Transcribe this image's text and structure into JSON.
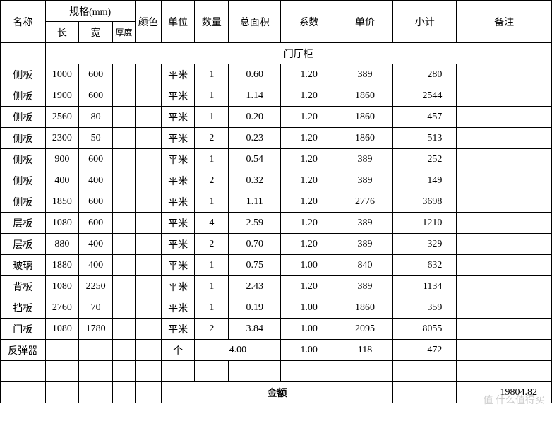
{
  "headers": {
    "name": "名称",
    "spec_group": "规格(mm)",
    "length": "长",
    "width": "宽",
    "thickness": "厚度",
    "color": "颜色",
    "unit": "单位",
    "qty": "数量",
    "area": "总面积",
    "coef": "系数",
    "price": "单价",
    "subtotal": "小计",
    "remark": "备注"
  },
  "section_title": "门厅柜",
  "rows": [
    {
      "name": "侧板",
      "l": "1000",
      "w": "600",
      "t": "",
      "color": "",
      "unit": "平米",
      "qty": "1",
      "area": "0.60",
      "coef": "1.20",
      "price": "389",
      "sub": "280",
      "remark": ""
    },
    {
      "name": "侧板",
      "l": "1900",
      "w": "600",
      "t": "",
      "color": "",
      "unit": "平米",
      "qty": "1",
      "area": "1.14",
      "coef": "1.20",
      "price": "1860",
      "sub": "2544",
      "remark": ""
    },
    {
      "name": "侧板",
      "l": "2560",
      "w": "80",
      "t": "",
      "color": "",
      "unit": "平米",
      "qty": "1",
      "area": "0.20",
      "coef": "1.20",
      "price": "1860",
      "sub": "457",
      "remark": ""
    },
    {
      "name": "侧板",
      "l": "2300",
      "w": "50",
      "t": "",
      "color": "",
      "unit": "平米",
      "qty": "2",
      "area": "0.23",
      "coef": "1.20",
      "price": "1860",
      "sub": "513",
      "remark": ""
    },
    {
      "name": "侧板",
      "l": "900",
      "w": "600",
      "t": "",
      "color": "",
      "unit": "平米",
      "qty": "1",
      "area": "0.54",
      "coef": "1.20",
      "price": "389",
      "sub": "252",
      "remark": ""
    },
    {
      "name": "侧板",
      "l": "400",
      "w": "400",
      "t": "",
      "color": "",
      "unit": "平米",
      "qty": "2",
      "area": "0.32",
      "coef": "1.20",
      "price": "389",
      "sub": "149",
      "remark": ""
    },
    {
      "name": "侧板",
      "l": "1850",
      "w": "600",
      "t": "",
      "color": "",
      "unit": "平米",
      "qty": "1",
      "area": "1.11",
      "coef": "1.20",
      "price": "2776",
      "sub": "3698",
      "remark": ""
    },
    {
      "name": "层板",
      "l": "1080",
      "w": "600",
      "t": "",
      "color": "",
      "unit": "平米",
      "qty": "4",
      "area": "2.59",
      "coef": "1.20",
      "price": "389",
      "sub": "1210",
      "remark": ""
    },
    {
      "name": "层板",
      "l": "880",
      "w": "400",
      "t": "",
      "color": "",
      "unit": "平米",
      "qty": "2",
      "area": "0.70",
      "coef": "1.20",
      "price": "389",
      "sub": "329",
      "remark": ""
    },
    {
      "name": "玻璃",
      "l": "1880",
      "w": "400",
      "t": "",
      "color": "",
      "unit": "平米",
      "qty": "1",
      "area": "0.75",
      "coef": "1.00",
      "price": "840",
      "sub": "632",
      "remark": ""
    },
    {
      "name": "背板",
      "l": "1080",
      "w": "2250",
      "t": "",
      "color": "",
      "unit": "平米",
      "qty": "1",
      "area": "2.43",
      "coef": "1.20",
      "price": "389",
      "sub": "1134",
      "remark": ""
    },
    {
      "name": "挡板",
      "l": "2760",
      "w": "70",
      "t": "",
      "color": "",
      "unit": "平米",
      "qty": "1",
      "area": "0.19",
      "coef": "1.00",
      "price": "1860",
      "sub": "359",
      "remark": ""
    },
    {
      "name": "门板",
      "l": "1080",
      "w": "1780",
      "t": "",
      "color": "",
      "unit": "平米",
      "qty": "2",
      "area": "3.84",
      "coef": "1.00",
      "price": "2095",
      "sub": "8055",
      "remark": ""
    }
  ],
  "special_row": {
    "name": "反弹器",
    "unit": "个",
    "area": "4.00",
    "coef": "1.00",
    "price": "118",
    "sub": "472"
  },
  "total_label": "金额",
  "total_value": "19804.82",
  "watermark": "值 什么值得买",
  "col_widths": {
    "name": 60,
    "l": 45,
    "w": 45,
    "t": 30,
    "color": 35,
    "unit": 45,
    "qty": 45,
    "area": 70,
    "coef": 75,
    "price": 75,
    "sub": 85,
    "remark": 127
  },
  "colors": {
    "border": "#000000",
    "bg": "#ffffff",
    "text": "#000000",
    "watermark": "#cccccc"
  }
}
